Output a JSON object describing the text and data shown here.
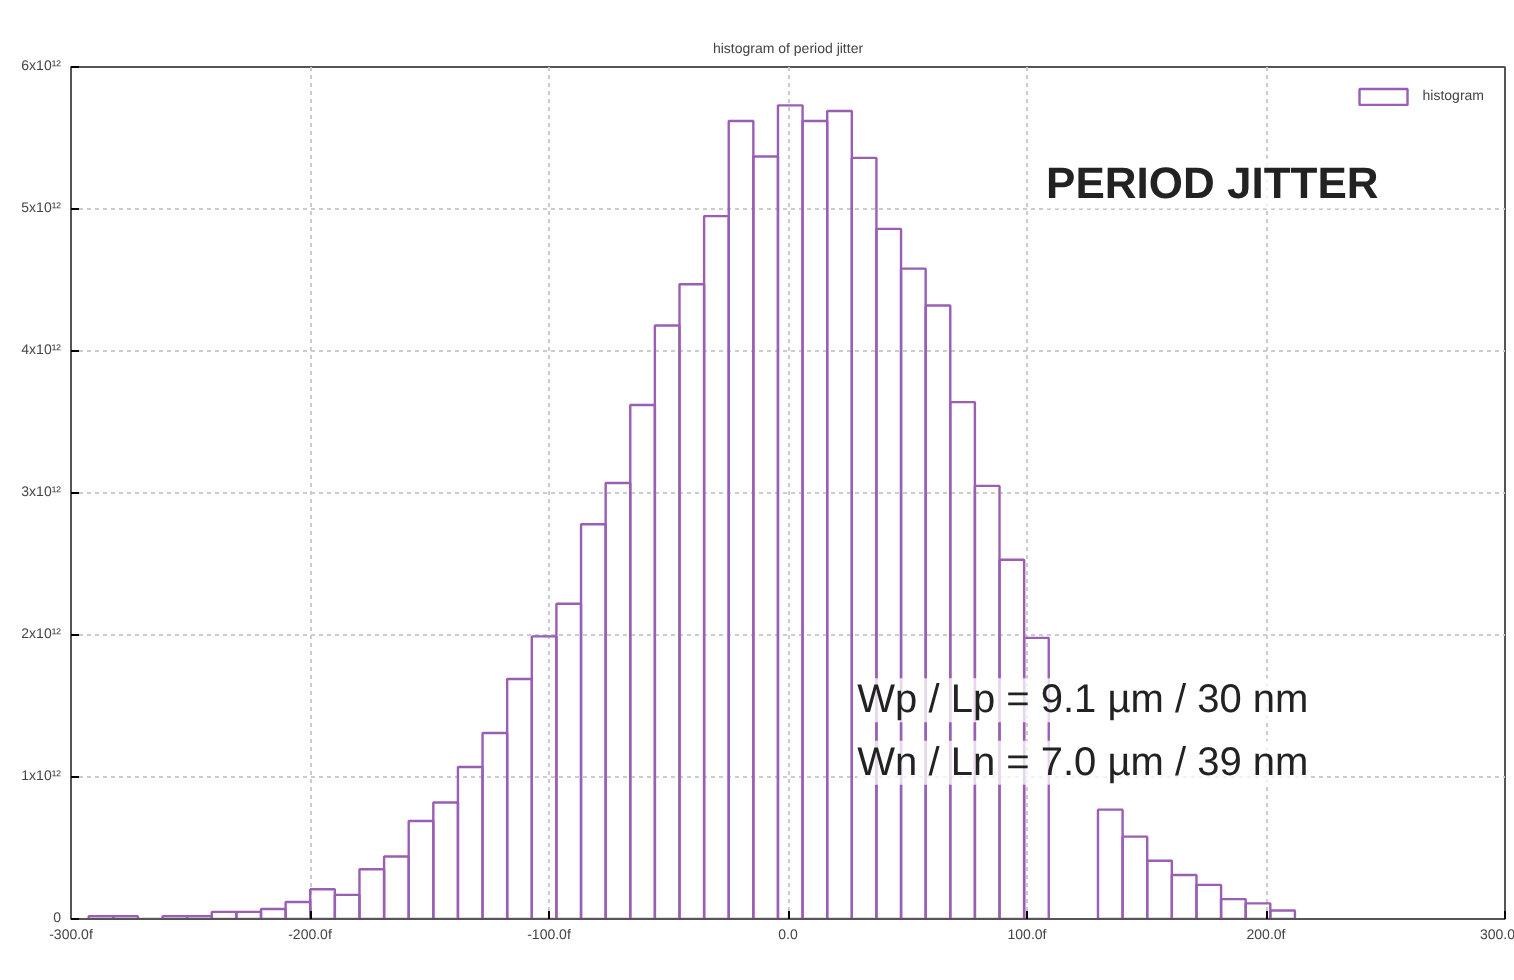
{
  "chart_data": {
    "type": "histogram",
    "title": "histogram of period jitter",
    "bins": [
      -292.6,
      -282.3,
      -272.0,
      -261.7,
      -251.4,
      -241.1,
      -230.8,
      -220.5,
      -210.2,
      -199.9,
      -189.6,
      -179.3,
      -169.0,
      -158.7,
      -148.4,
      -138.1,
      -127.8,
      -117.5,
      -107.2,
      -96.9,
      -86.6,
      -76.3,
      -66.0,
      -55.7,
      -45.4,
      -35.1,
      -24.8,
      -14.5,
      -4.2,
      6.1,
      16.4,
      26.7,
      37.0,
      47.3,
      57.6,
      67.9,
      78.2,
      88.5,
      98.8,
      109.1,
      119.4,
      129.7,
      140.0,
      150.3,
      160.6,
      170.9,
      181.2,
      191.5,
      201.8,
      212.1
    ],
    "series": [
      {
        "name": "histogram",
        "color": "#9a5fb4",
        "values": [
          20000000000.0,
          20000000000.0,
          0,
          20000000000.0,
          20000000000.0,
          50000000000.0,
          50000000000.0,
          70000000000.0,
          120000000000.0,
          210000000000.0,
          170000000000.0,
          350000000000.0,
          440000000000.0,
          690000000000.0,
          820000000000.0,
          1070000000000.0,
          1310000000000.0,
          1690000000000.0,
          1990000000000.0,
          2220000000000.0,
          2780000000000.0,
          3070000000000.0,
          3620000000000.0,
          4180000000000.0,
          4470000000000.0,
          4950000000000.0,
          5620000000000.0,
          5370000000000.0,
          5730000000000.0,
          5620000000000.0,
          5690000000000.0,
          5360000000000.0,
          4860000000000.0,
          4580000000000.0,
          4320000000000.0,
          3640000000000.0,
          3050000000000.0,
          2530000000000.0,
          1980000000000.0,
          null,
          null,
          770000000000.0,
          580000000000.0,
          410000000000.0,
          310000000000.0,
          240000000000.0,
          140000000000.0,
          110000000000.0,
          60000000000.0
        ]
      }
    ],
    "xlim": [
      -300,
      300
    ],
    "xticks": [
      {
        "value": -300,
        "label": "-300.0f"
      },
      {
        "value": -200,
        "label": "-200.0f"
      },
      {
        "value": -100,
        "label": "-100.0f"
      },
      {
        "value": 0,
        "label": "0.0"
      },
      {
        "value": 100,
        "label": "100.0f"
      },
      {
        "value": 200,
        "label": "200.0f"
      },
      {
        "value": 300,
        "label": "300.0"
      }
    ],
    "ylim": [
      0,
      6000000000000.0
    ],
    "yticks": [
      0,
      {
        "value": 1000000000000.0,
        "label": "1x10¹²"
      },
      {
        "value": 2000000000000.0,
        "label": "2x10¹²"
      },
      {
        "value": 3000000000000.0,
        "label": "3x10¹²"
      },
      {
        "value": 4000000000000.0,
        "label": "4x10¹²"
      },
      {
        "value": 5000000000000.0,
        "label": "5x10¹²"
      },
      {
        "value": 6000000000000.0,
        "label": "6x10¹²"
      }
    ],
    "grid": true,
    "legend": "top right",
    "annotations": [
      {
        "text": "PERIOD JITTER"
      },
      {
        "text": "Wp / Lp = 9.1 µm / 30 nm"
      },
      {
        "text": "Wn / Ln = 7.0 µm / 39 nm"
      }
    ]
  }
}
